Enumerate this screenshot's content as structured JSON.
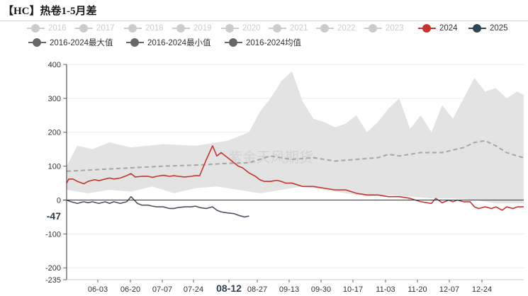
{
  "title": "【HC】热卷1-5月差",
  "watermark": "紫金天风期货",
  "legend": [
    {
      "name": "2016",
      "color": "#cccccc",
      "active": false,
      "style": "solid"
    },
    {
      "name": "2017",
      "color": "#cccccc",
      "active": false,
      "style": "solid"
    },
    {
      "name": "2018",
      "color": "#cccccc",
      "active": false,
      "style": "solid"
    },
    {
      "name": "2019",
      "color": "#cccccc",
      "active": false,
      "style": "solid"
    },
    {
      "name": "2020",
      "color": "#cccccc",
      "active": false,
      "style": "solid"
    },
    {
      "name": "2021",
      "color": "#cccccc",
      "active": false,
      "style": "solid"
    },
    {
      "name": "2022",
      "color": "#cccccc",
      "active": false,
      "style": "solid"
    },
    {
      "name": "2023",
      "color": "#cccccc",
      "active": false,
      "style": "solid"
    },
    {
      "name": "2024",
      "color": "#c23531",
      "active": true,
      "style": "solid"
    },
    {
      "name": "2025",
      "color": "#2f4554",
      "active": true,
      "style": "solid"
    },
    {
      "name": "2016-2024最大值",
      "color": "#666666",
      "active": true,
      "style": "solid"
    },
    {
      "name": "2016-2024最小值",
      "color": "#666666",
      "active": true,
      "style": "solid"
    },
    {
      "name": "2016-2024均值",
      "color": "#666666",
      "active": true,
      "style": "dashed"
    }
  ],
  "chart_data": {
    "type": "line",
    "title": "【HC】热卷1-5月差",
    "x_ticks": [
      "06-03",
      "06-20",
      "07-07",
      "07-24",
      "08-12",
      "08-27",
      "09-13",
      "09-30",
      "10-17",
      "11-03",
      "11-20",
      "12-07",
      "12-24"
    ],
    "x_highlight": "08-12",
    "x_range_days": [
      0,
      213
    ],
    "y_ticks": [
      -235,
      -200,
      -100,
      0,
      100,
      200,
      300,
      400
    ],
    "ylim": [
      -235,
      400
    ],
    "y_marker": {
      "value": -47,
      "label": "-47"
    },
    "x_day_note": "x values are days after 05-20",
    "band_max": {
      "name": "2016-2024最大值",
      "x": [
        0,
        5,
        12,
        20,
        30,
        45,
        60,
        75,
        85,
        90,
        95,
        100,
        105,
        110,
        115,
        120,
        125,
        130,
        135,
        140,
        145,
        150,
        155,
        160,
        165,
        170,
        175,
        180,
        185,
        190,
        195,
        200,
        205,
        210,
        213
      ],
      "y": [
        100,
        160,
        150,
        170,
        155,
        165,
        160,
        175,
        200,
        260,
        300,
        350,
        380,
        290,
        240,
        230,
        215,
        225,
        250,
        200,
        230,
        270,
        300,
        210,
        250,
        200,
        280,
        240,
        300,
        360,
        320,
        330,
        300,
        320,
        310
      ]
    },
    "band_min": {
      "name": "2016-2024最小值",
      "x": [
        0,
        10,
        20,
        30,
        40,
        50,
        60,
        70,
        80,
        90,
        100,
        110,
        120,
        130,
        140,
        150,
        160,
        170,
        180,
        190,
        200,
        213
      ],
      "y": [
        30,
        20,
        30,
        25,
        40,
        20,
        35,
        40,
        30,
        20,
        30,
        40,
        30,
        20,
        10,
        15,
        10,
        5,
        5,
        0,
        -10,
        -10
      ]
    },
    "series": [
      {
        "name": "2016-2024均值",
        "x": [
          0,
          15,
          30,
          45,
          60,
          75,
          85,
          95,
          105,
          115,
          125,
          135,
          145,
          150,
          155,
          165,
          175,
          185,
          190,
          195,
          200,
          205,
          210,
          213
        ],
        "y": [
          85,
          90,
          95,
          100,
          103,
          108,
          110,
          130,
          120,
          125,
          115,
          120,
          125,
          135,
          130,
          140,
          140,
          155,
          170,
          175,
          160,
          140,
          130,
          125
        ]
      },
      {
        "name": "2024",
        "x": [
          0,
          1,
          3,
          5,
          8,
          10,
          13,
          15,
          18,
          20,
          22,
          25,
          28,
          30,
          32,
          35,
          38,
          40,
          42,
          45,
          48,
          50,
          52,
          55,
          58,
          60,
          62,
          65,
          68,
          70,
          72,
          74,
          76,
          78,
          80,
          82,
          85,
          88,
          90,
          92,
          95,
          98,
          100,
          102,
          105,
          110,
          115,
          120,
          125,
          130,
          135,
          140,
          145,
          150,
          155,
          160,
          165,
          170,
          172,
          175,
          178,
          180,
          182,
          185,
          188,
          190,
          192,
          195,
          198,
          200,
          203,
          205,
          208,
          210,
          213
        ],
        "y": [
          50,
          62,
          62,
          55,
          48,
          55,
          60,
          57,
          62,
          65,
          62,
          65,
          72,
          78,
          68,
          70,
          70,
          67,
          70,
          73,
          70,
          72,
          70,
          68,
          70,
          72,
          72,
          118,
          160,
          130,
          140,
          130,
          120,
          110,
          100,
          95,
          80,
          70,
          60,
          55,
          55,
          58,
          55,
          50,
          50,
          40,
          40,
          35,
          30,
          30,
          20,
          15,
          15,
          10,
          10,
          5,
          -5,
          -10,
          5,
          -8,
          0,
          -5,
          0,
          -5,
          -5,
          -20,
          -25,
          -20,
          -25,
          -20,
          -30,
          -20,
          -25,
          -20,
          -20
        ]
      },
      {
        "name": "2025",
        "x": [
          0,
          2,
          5,
          8,
          10,
          12,
          15,
          18,
          20,
          22,
          25,
          28,
          30,
          33,
          35,
          38,
          40,
          42,
          45,
          48,
          50,
          52,
          55,
          58,
          60,
          62,
          65,
          68,
          70,
          72,
          75,
          78,
          80,
          83,
          85
        ],
        "y": [
          0,
          -5,
          -10,
          -5,
          -8,
          -5,
          -10,
          -5,
          -10,
          -5,
          -10,
          -5,
          10,
          -10,
          -15,
          -15,
          -18,
          -20,
          -20,
          -25,
          -25,
          -22,
          -20,
          -20,
          -18,
          -22,
          -25,
          -20,
          -30,
          -35,
          -38,
          -40,
          -45,
          -50,
          -47
        ]
      }
    ],
    "colors": {
      "band": "#e3e3e3",
      "y2024": "#c23531",
      "y2025": "#4b5561",
      "mean": "#a6a6a6",
      "axis": "#333333",
      "grid": "#ececec"
    }
  }
}
